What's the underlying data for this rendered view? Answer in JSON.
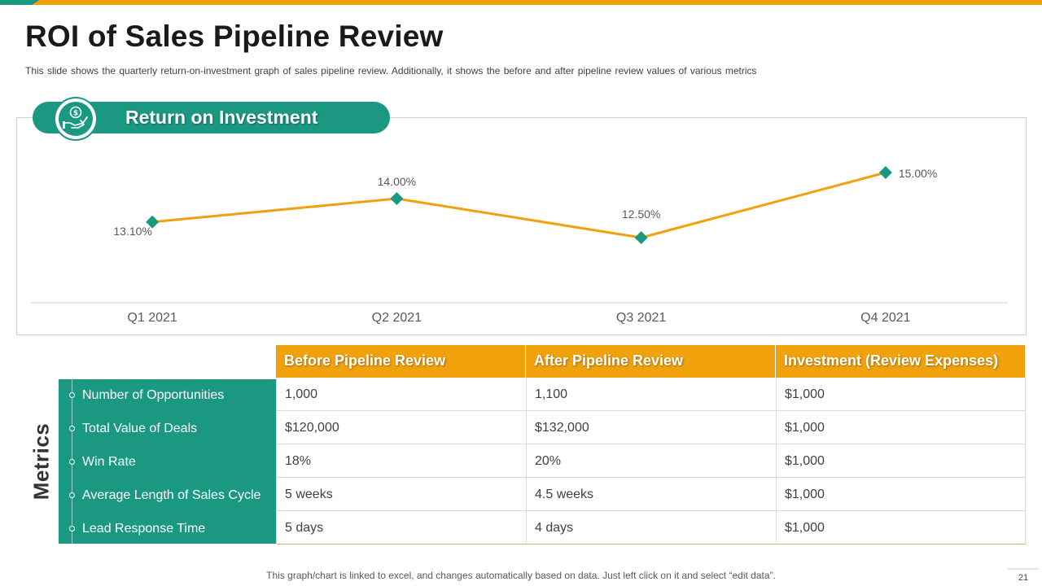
{
  "slide": {
    "title": "ROI of Sales Pipeline Review",
    "subtitle": "This slide shows the quarterly return-on-investment  graph of sales pipeline review.  Additionally, it shows the before  and after pipeline  review  values  of various  metrics",
    "footer": "This graph/chart is linked to excel, and changes automatically based on data. Just left click on it and select “edit data”.",
    "page_number": "21"
  },
  "colors": {
    "accent_orange": "#f1a10c",
    "accent_teal": "#1a9882"
  },
  "roi_section": {
    "label": "Return on Investment",
    "icon": "money-hand-icon"
  },
  "chart_data": {
    "type": "line",
    "title": "Return on Investment",
    "categories": [
      "Q1 2021",
      "Q2 2021",
      "Q3 2021",
      "Q4 2021"
    ],
    "values": [
      13.1,
      14.0,
      12.5,
      15.0
    ],
    "value_labels": [
      "13.10%",
      "14.00%",
      "12.50%",
      "15.00%"
    ],
    "ylim": [
      11.0,
      16.0
    ],
    "xlabel": "",
    "ylabel": "",
    "grid": false,
    "line_color": "#f1a10c",
    "marker_color": "#1a9882",
    "marker": "diamond"
  },
  "table": {
    "side_label": "Metrics",
    "headers": [
      "Before Pipeline Review",
      "After Pipeline Review",
      "Investment (Review Expenses)"
    ],
    "rows": [
      {
        "metric": "Number of Opportunities",
        "before": "1,000",
        "after": "1,100",
        "investment": "$1,000"
      },
      {
        "metric": "Total Value of Deals",
        "before": "$120,000",
        "after": "$132,000",
        "investment": "$1,000"
      },
      {
        "metric": "Win Rate",
        "before": "18%",
        "after": "20%",
        "investment": "$1,000"
      },
      {
        "metric": "Average Length of Sales Cycle",
        "before": "5 weeks",
        "after": "4.5 weeks",
        "investment": "$1,000"
      },
      {
        "metric": "Lead Response Time",
        "before": "5 days",
        "after": "4 days",
        "investment": "$1,000"
      }
    ]
  }
}
